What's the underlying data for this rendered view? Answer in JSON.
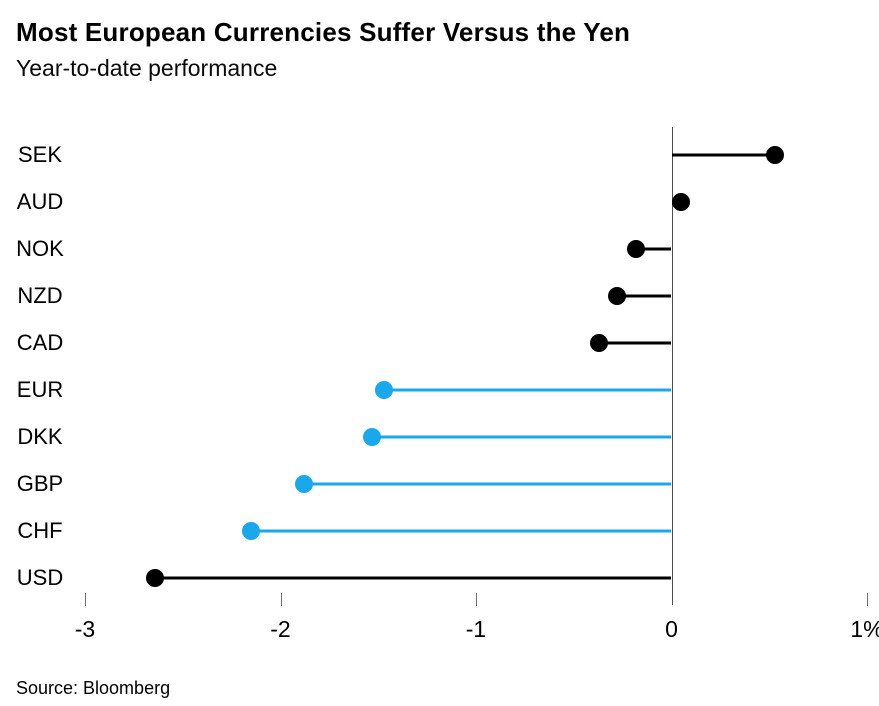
{
  "page": {
    "background": "#ffffff"
  },
  "chart_data": {
    "type": "bar",
    "style": "horizontal-lollipop",
    "title": "Most European Currencies Suffer Versus the Yen",
    "subtitle": "Year-to-date performance",
    "source": "Source: Bloomberg",
    "xlabel": "",
    "ylabel": "",
    "unit": "%",
    "xlim": [
      -3,
      1
    ],
    "baseline_value": 0,
    "grid": false,
    "legend_position": "none",
    "categories": [
      "SEK",
      "AUD",
      "NOK",
      "NZD",
      "CAD",
      "EUR",
      "DKK",
      "GBP",
      "CHF",
      "USD"
    ],
    "values": [
      0.53,
      0.05,
      -0.18,
      -0.28,
      -0.37,
      -1.47,
      -1.53,
      -1.88,
      -2.15,
      -2.64
    ],
    "point_colors": [
      "black",
      "black",
      "black",
      "black",
      "black",
      "blue",
      "blue",
      "blue",
      "blue",
      "black"
    ],
    "palette": {
      "black": "#000000",
      "blue": "#1AA7EC"
    },
    "axis_line_color": "#4d4d4d",
    "tick_color": "#6e6e6e",
    "xticks": [
      {
        "value": -3,
        "label": "-3",
        "mark": true
      },
      {
        "value": -2,
        "label": "-2",
        "mark": true
      },
      {
        "value": -1,
        "label": "-1",
        "mark": true
      },
      {
        "value": 0,
        "label": "0",
        "mark": false
      },
      {
        "value": 1,
        "label": "1%",
        "mark": true
      }
    ]
  }
}
